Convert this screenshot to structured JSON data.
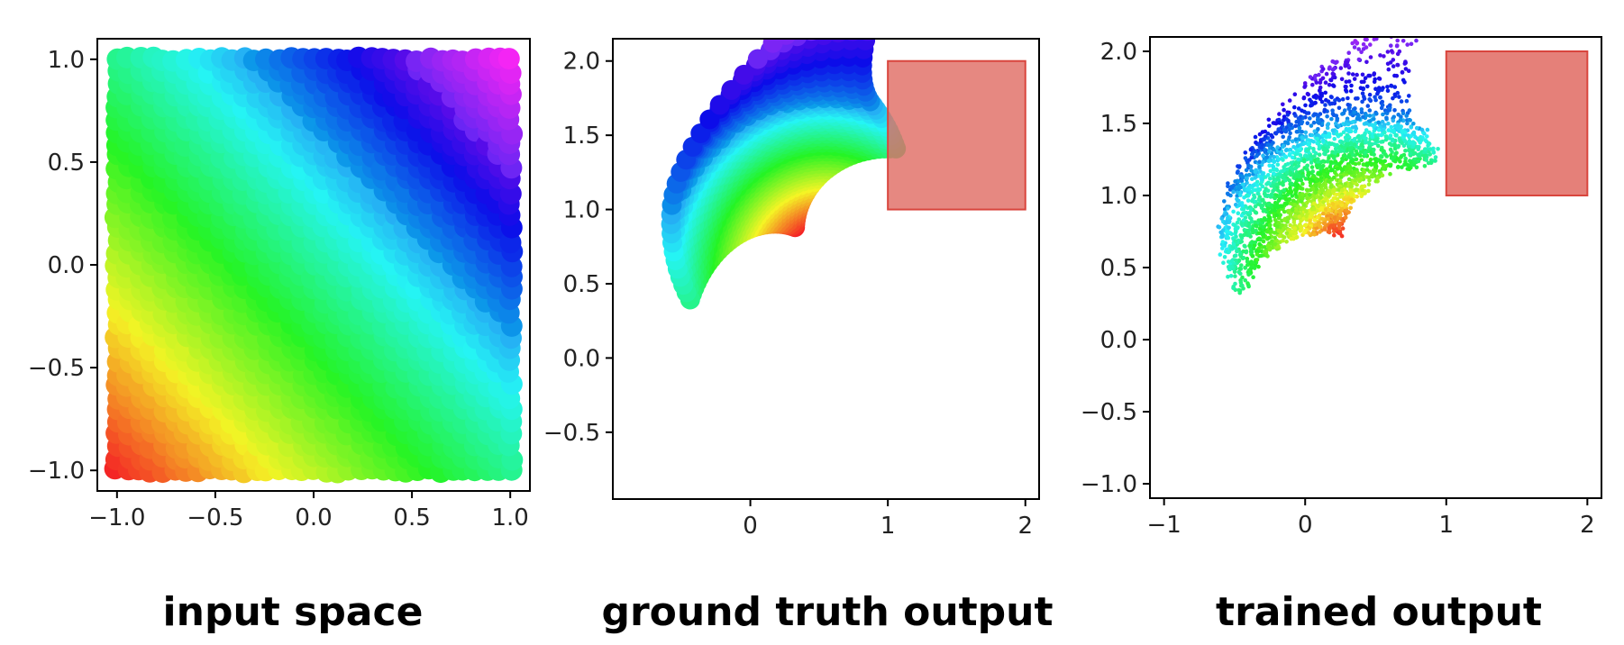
{
  "chart_data": [
    {
      "type": "scatter",
      "caption": "input space",
      "xlim": [
        -1.1,
        1.1
      ],
      "ylim": [
        -1.1,
        1.1
      ],
      "xticks": [
        "−1.0",
        "−0.5",
        "0.0",
        "0.5",
        "1.0"
      ],
      "yticks": [
        "1.0",
        "0.5",
        "0.0",
        "−0.5",
        "−1.0"
      ],
      "xtick_values": [
        -1.0,
        -0.5,
        0.0,
        0.5,
        1.0
      ],
      "ytick_values": [
        1.0,
        0.5,
        0.0,
        -0.5,
        -1.0
      ],
      "region": "uniform square x ∈ [-1, 1], y ∈ [-1, 1]",
      "colormap": "hsv: red at (-1,-1) through yellow, green, cyan, blue to magenta at (1,1)",
      "grid": false
    },
    {
      "type": "scatter",
      "caption": "ground truth output",
      "xlim": [
        -1.0,
        2.1
      ],
      "ylim": [
        -0.95,
        2.15
      ],
      "xticks": [
        "0",
        "1",
        "2"
      ],
      "yticks": [
        "2.0",
        "1.5",
        "1.0",
        "0.5",
        "0.0",
        "−0.5"
      ],
      "xtick_values": [
        0,
        1,
        2
      ],
      "ytick_values": [
        2.0,
        1.5,
        1.0,
        0.5,
        0.0,
        -0.5
      ],
      "target_box": {
        "x": [
          1.0,
          2.0
        ],
        "y": [
          1.0,
          2.0
        ],
        "color": "#e06a62"
      },
      "colormap": "same hsv mapping as input space",
      "grid": false
    },
    {
      "type": "scatter",
      "caption": "trained output",
      "xlim": [
        -1.1,
        2.1
      ],
      "ylim": [
        -1.1,
        2.1
      ],
      "xticks": [
        "−1",
        "0",
        "1",
        "2"
      ],
      "yticks": [
        "2.0",
        "1.5",
        "1.0",
        "0.5",
        "0.0",
        "−0.5",
        "−1.0"
      ],
      "xtick_values": [
        -1,
        0,
        1,
        2
      ],
      "ytick_values": [
        2.0,
        1.5,
        1.0,
        0.5,
        0.0,
        -0.5,
        -1.0
      ],
      "target_box": {
        "x": [
          1.0,
          2.0
        ],
        "y": [
          1.0,
          2.0
        ],
        "color": "#e06a62"
      },
      "colormap": "same hsv mapping as input space",
      "grid": false
    }
  ]
}
